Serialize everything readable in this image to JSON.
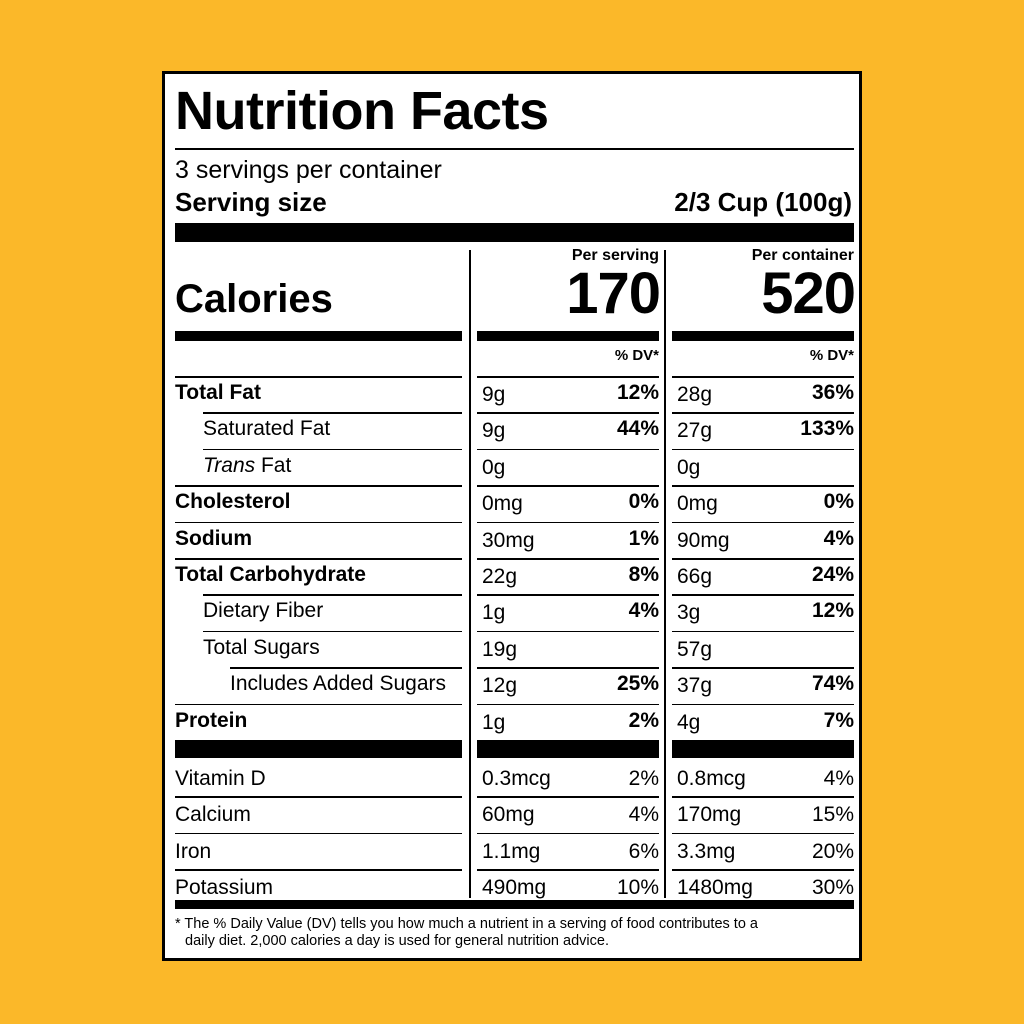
{
  "title": "Nutrition Facts",
  "servings_per_container": "3 servings per container",
  "serving_size_label": "Serving size",
  "serving_size_value": "2/3 Cup (100g)",
  "calories_label": "Calories",
  "per_serving_label": "Per serving",
  "per_container_label": "Per container",
  "calories_per_serving": "170",
  "calories_per_container": "520",
  "dv_header": "% DV*",
  "nutrients": [
    {
      "label": "Total Fat",
      "serving_amount": "9g",
      "serving_dv": "12%",
      "container_amount": "28g",
      "container_dv": "36%"
    },
    {
      "label": "Saturated Fat",
      "serving_amount": "9g",
      "serving_dv": "44%",
      "container_amount": "27g",
      "container_dv": "133%"
    },
    {
      "label_italic": "Trans",
      "label": " Fat",
      "serving_amount": "0g",
      "serving_dv": "",
      "container_amount": "0g",
      "container_dv": ""
    },
    {
      "label": "Cholesterol",
      "serving_amount": "0mg",
      "serving_dv": "0%",
      "container_amount": "0mg",
      "container_dv": "0%"
    },
    {
      "label": "Sodium",
      "serving_amount": "30mg",
      "serving_dv": "1%",
      "container_amount": "90mg",
      "container_dv": "4%"
    },
    {
      "label": "Total Carbohydrate",
      "serving_amount": "22g",
      "serving_dv": "8%",
      "container_amount": "66g",
      "container_dv": "24%"
    },
    {
      "label": "Dietary Fiber",
      "serving_amount": "1g",
      "serving_dv": "4%",
      "container_amount": "3g",
      "container_dv": "12%"
    },
    {
      "label": "Total Sugars",
      "serving_amount": "19g",
      "serving_dv": "",
      "container_amount": "57g",
      "container_dv": ""
    },
    {
      "label": "Includes Added Sugars",
      "serving_amount": "12g",
      "serving_dv": "25%",
      "container_amount": "37g",
      "container_dv": "74%"
    },
    {
      "label": "Protein",
      "serving_amount": "1g",
      "serving_dv": "2%",
      "container_amount": "4g",
      "container_dv": "7%"
    }
  ],
  "vitamins": [
    {
      "label": "Vitamin D",
      "serving_amount": "0.3mcg",
      "serving_dv": "2%",
      "container_amount": "0.8mcg",
      "container_dv": "4%"
    },
    {
      "label": "Calcium",
      "serving_amount": "60mg",
      "serving_dv": "4%",
      "container_amount": "170mg",
      "container_dv": "15%"
    },
    {
      "label": "Iron",
      "serving_amount": "1.1mg",
      "serving_dv": "6%",
      "container_amount": "3.3mg",
      "container_dv": "20%"
    },
    {
      "label": "Potassium",
      "serving_amount": "490mg",
      "serving_dv": "10%",
      "container_amount": "1480mg",
      "container_dv": "30%"
    }
  ],
  "footnote_line1": "* The % Daily Value (DV) tells you how much a nutrient in a serving of food contributes to a",
  "footnote_line2": "daily diet. 2,000 calories a day is used for general nutrition advice.",
  "colors": {
    "background": "#FBB829",
    "label": "#FFFFFF",
    "ink": "#000000"
  }
}
